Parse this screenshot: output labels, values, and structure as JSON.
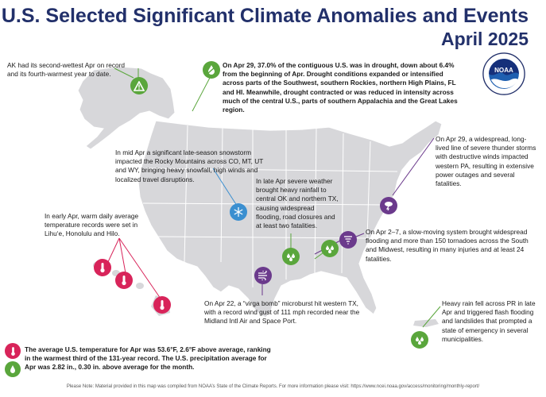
{
  "title": {
    "line1": "U.S. Selected Significant Climate Anomalies and Events",
    "line2": "April 2025"
  },
  "logo": {
    "text": "NOAA",
    "ring_text": "NATIONAL OCEANIC AND ATMOSPHERIC ADMINISTRATION"
  },
  "events": {
    "alaska": "AK had its second-wettest Apr on record and its fourth-warmest year to date.",
    "drought": "On Apr 29, 37.0% of the contiguous U.S. was in drought, down about 6.4% from the beginning of Apr. Drought conditions expanded or intensified across parts of the Southwest, southern Rockies, northern High Plains, FL and HI. Meanwhile, drought contracted or was reduced in intensity across much of the central U.S., parts of southern Appalachia and the Great Lakes region.",
    "snowstorm": "In mid Apr a significant late-season snowstorm impacted the Rocky Mountains across CO, MT, UT and WY, bringing heavy snowfall, high winds and localized travel disruptions.",
    "texas_rain": "In late Apr severe weather brought heavy rainfall to central OK and northern TX, causing widespread flooding, road closures and at least two fatalities.",
    "thunderstorms": "On Apr 29, a widespread, long-lived line of severe thunder storms with destructive winds impacted western PA, resulting in extensive power outages and several fatalities.",
    "hawaii": "In early Apr, warm daily average temperature records were set in Lihu‘e, Honolulu and Hilo.",
    "tornadoes": "On Apr 2–7, a slow-moving system brought widespread flooding and more than 150 tornadoes across the South and Midwest, resulting in many injuries and at least 24 fatalities.",
    "virga": "On Apr 22, a “virga bomb” microburst hit western TX, with a record wind gust of 111 mph recorded near the Midland Intl Air and Space Port.",
    "puerto_rico": "Heavy rain fell across PR in late Apr and triggered flash flooding and landslides that prompted a state of emergency in several municipalities.",
    "national_summary": "The average U.S. temperature for Apr was 53.6°F, 2.6°F above average, ranking in the warmest third of the 131-year record. The U.S. precipitation average for Apr was 2.82 in., 0.30 in. above average for the month."
  },
  "footnote": "Please Note: Material provided in this map was compiled from NOAA’s State of the Climate Reports. For more information please visit: https://www.ncei.noaa.gov/access/monitoring/monthly-report/",
  "colors": {
    "title": "#22306a",
    "land": "#d7d7da",
    "land_border": "#ffffff",
    "drought_green": "#5aa63c",
    "warm_pink": "#d8245a",
    "storm_purple": "#6b3a8c",
    "snow_blue": "#3b8fd0"
  }
}
